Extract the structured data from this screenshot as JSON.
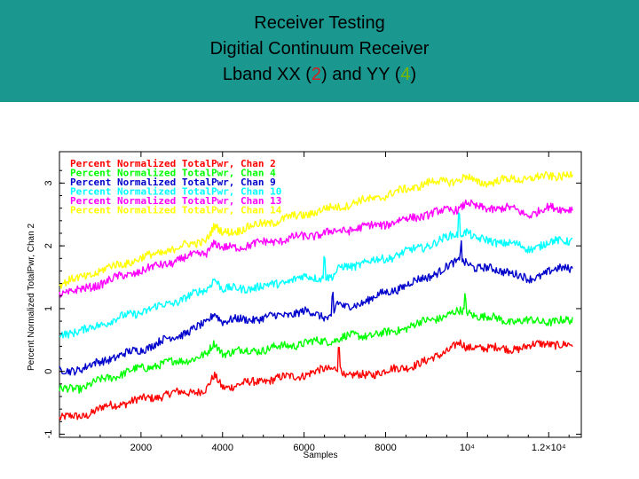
{
  "header": {
    "title_line1": "Receiver Testing",
    "title_line2": "Digitial Continuum Receiver",
    "title_line3_prefix": "Lband XX (",
    "title_line3_xx": "2",
    "title_line3_mid": ") and YY (",
    "title_line3_yy": "4",
    "title_line3_suffix": ")",
    "bg_color": "#1a9890",
    "xx_color": "#d42020",
    "yy_color": "#7ab800"
  },
  "chart_data": {
    "type": "line",
    "xlabel": "Samples",
    "ylabel": "Percent Normalized TotalPwr, Chan 2",
    "xlim": [
      0,
      12800
    ],
    "ylim": [
      -1.05,
      3.5
    ],
    "x_ticks": [
      {
        "value": 2000,
        "label": "2000"
      },
      {
        "value": 4000,
        "label": "4000"
      },
      {
        "value": 6000,
        "label": "6000"
      },
      {
        "value": 8000,
        "label": "8000"
      },
      {
        "value": 10000,
        "label": "10⁴"
      },
      {
        "value": 12000,
        "label": "1.2×10⁴"
      }
    ],
    "y_ticks": [
      {
        "value": -1,
        "label": "-1"
      },
      {
        "value": 0,
        "label": "0"
      },
      {
        "value": 1,
        "label": "1"
      },
      {
        "value": 2,
        "label": "2"
      },
      {
        "value": 3,
        "label": "3"
      }
    ],
    "grid": false,
    "legend_position": "top-left",
    "series": [
      {
        "name": "Percent Normalized TotalPwr, Chan 2",
        "color": "#ff0000",
        "x": [
          0,
          600,
          1200,
          2000,
          2800,
          3600,
          3800,
          4000,
          5000,
          6000,
          6700,
          6900,
          7000,
          8000,
          9000,
          9800,
          10000,
          10200,
          11000,
          12000,
          12600
        ],
        "y": [
          -0.75,
          -0.7,
          -0.55,
          -0.45,
          -0.35,
          -0.3,
          -0.08,
          -0.25,
          -0.15,
          -0.05,
          0.05,
          0.1,
          -0.1,
          0.0,
          0.15,
          0.45,
          0.35,
          0.4,
          0.35,
          0.45,
          0.4
        ]
      },
      {
        "name": "Percent Normalized TotalPwr, Chan 4",
        "color": "#00ff00",
        "x": [
          0,
          600,
          1200,
          2000,
          2800,
          3600,
          3800,
          4000,
          5000,
          6000,
          6700,
          7000,
          8000,
          9000,
          9800,
          10000,
          10200,
          11000,
          12000,
          12600
        ],
        "y": [
          -0.3,
          -0.25,
          -0.1,
          0.05,
          0.15,
          0.25,
          0.45,
          0.3,
          0.35,
          0.45,
          0.5,
          0.55,
          0.6,
          0.8,
          0.95,
          0.95,
          0.9,
          0.8,
          0.8,
          0.8
        ]
      },
      {
        "name": "Percent Normalized TotalPwr, Chan 9",
        "color": "#0000cc",
        "x": [
          0,
          600,
          1200,
          2000,
          2800,
          3600,
          3800,
          4000,
          5000,
          6000,
          6700,
          6800,
          7000,
          8000,
          9000,
          9800,
          10000,
          10200,
          11000,
          11500,
          12000,
          12600
        ],
        "y": [
          0.0,
          0.05,
          0.2,
          0.35,
          0.55,
          0.75,
          0.95,
          0.8,
          0.85,
          0.95,
          0.85,
          1.1,
          1.0,
          1.25,
          1.5,
          1.75,
          1.75,
          1.65,
          1.6,
          1.45,
          1.6,
          1.65
        ]
      },
      {
        "name": "Percent Normalized TotalPwr, Chan 10",
        "color": "#00ffff",
        "x": [
          0,
          600,
          1200,
          2000,
          2800,
          3600,
          3800,
          4000,
          5000,
          6000,
          6500,
          6700,
          6900,
          8000,
          9000,
          9800,
          10000,
          10200,
          11000,
          11500,
          12000,
          12600
        ],
        "y": [
          0.6,
          0.65,
          0.8,
          0.95,
          1.1,
          1.3,
          1.5,
          1.3,
          1.35,
          1.5,
          1.5,
          1.5,
          1.65,
          1.8,
          2.0,
          2.2,
          2.25,
          2.1,
          2.05,
          1.95,
          2.05,
          2.1
        ]
      },
      {
        "name": "Percent Normalized TotalPwr, Chan 13",
        "color": "#ff00ff",
        "x": [
          0,
          600,
          1200,
          2000,
          2800,
          3600,
          3800,
          4000,
          5000,
          6000,
          7000,
          8000,
          9000,
          9800,
          10000,
          10200,
          11000,
          11500,
          12000,
          12600
        ],
        "y": [
          1.25,
          1.3,
          1.45,
          1.6,
          1.75,
          1.9,
          2.05,
          1.95,
          2.05,
          2.15,
          2.25,
          2.35,
          2.5,
          2.6,
          2.7,
          2.6,
          2.6,
          2.5,
          2.6,
          2.6
        ]
      },
      {
        "name": "Percent Normalized TotalPwr, Chan 14",
        "color": "#ffff00",
        "x": [
          0,
          600,
          1200,
          2000,
          2800,
          3600,
          3800,
          4000,
          5000,
          6000,
          7000,
          8000,
          9000,
          9800,
          10000,
          10200,
          11000,
          12000,
          12600
        ],
        "y": [
          1.4,
          1.5,
          1.65,
          1.8,
          1.95,
          2.1,
          2.3,
          2.2,
          2.35,
          2.5,
          2.65,
          2.8,
          3.0,
          3.05,
          3.1,
          3.0,
          3.05,
          3.1,
          3.15
        ]
      }
    ]
  }
}
